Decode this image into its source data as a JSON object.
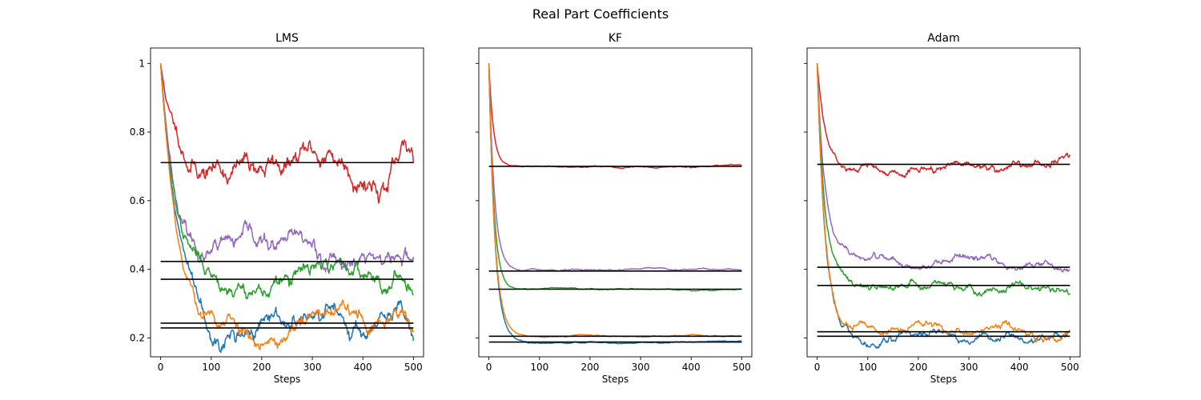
{
  "figure_title": "Real Part Coefficients",
  "colors": {
    "c1": "#1f77b4",
    "c2": "#ff7f0e",
    "c3": "#2ca02c",
    "c4": "#d62728",
    "c5": "#9467bd",
    "reference": "#000000"
  },
  "chart_data": [
    {
      "type": "line",
      "title": "LMS",
      "xlabel": "Steps",
      "ylabel": "",
      "xlim": [
        -20,
        520
      ],
      "ylim": [
        0.145,
        1.045
      ],
      "xticks": [
        0,
        100,
        200,
        300,
        400,
        500
      ],
      "yticks": [
        0.2,
        0.4,
        0.6,
        0.8,
        1.0
      ],
      "ytick_labels_visible": true,
      "grid": false,
      "references": [
        0.711,
        0.423,
        0.371,
        0.243,
        0.229
      ],
      "series": [
        {
          "color_key": "c4",
          "start": 1.0,
          "target": 0.711,
          "tau": 25,
          "noise": 0.022,
          "seed": 11
        },
        {
          "color_key": "c5",
          "start": 1.0,
          "target": 0.423,
          "tau": 30,
          "noise": 0.018,
          "seed": 23
        },
        {
          "color_key": "c3",
          "start": 1.0,
          "target": 0.371,
          "tau": 28,
          "noise": 0.017,
          "seed": 37
        },
        {
          "color_key": "c1",
          "start": 1.0,
          "target": 0.243,
          "tau": 35,
          "noise": 0.018,
          "seed": 41
        },
        {
          "color_key": "c2",
          "start": 1.0,
          "target": 0.229,
          "tau": 35,
          "noise": 0.017,
          "seed": 53
        }
      ]
    },
    {
      "type": "line",
      "title": "KF",
      "xlabel": "Steps",
      "ylabel": "",
      "xlim": [
        -20,
        520
      ],
      "ylim": [
        0.145,
        1.045
      ],
      "xticks": [
        0,
        100,
        200,
        300,
        400,
        500
      ],
      "yticks": [
        0.2,
        0.4,
        0.6,
        0.8,
        1.0
      ],
      "ytick_labels_visible": false,
      "grid": false,
      "references": [
        0.7,
        0.395,
        0.342,
        0.205,
        0.188
      ],
      "series": [
        {
          "color_key": "c4",
          "start": 1.0,
          "target": 0.7,
          "tau": 9,
          "noise": 0.0012,
          "seed": 61
        },
        {
          "color_key": "c5",
          "start": 1.0,
          "target": 0.395,
          "tau": 11,
          "noise": 0.0012,
          "seed": 67
        },
        {
          "color_key": "c3",
          "start": 1.0,
          "target": 0.342,
          "tau": 10,
          "noise": 0.0012,
          "seed": 71
        },
        {
          "color_key": "c1",
          "start": 1.0,
          "target": 0.188,
          "tau": 12,
          "noise": 0.0012,
          "seed": 79
        },
        {
          "color_key": "c2",
          "start": 1.0,
          "target": 0.205,
          "tau": 12,
          "noise": 0.0012,
          "seed": 83
        }
      ]
    },
    {
      "type": "line",
      "title": "Adam",
      "xlabel": "Steps",
      "ylabel": "",
      "xlim": [
        -20,
        520
      ],
      "ylim": [
        0.145,
        1.045
      ],
      "xticks": [
        0,
        100,
        200,
        300,
        400,
        500
      ],
      "yticks": [
        0.2,
        0.4,
        0.6,
        0.8,
        1.0
      ],
      "ytick_labels_visible": false,
      "grid": false,
      "references": [
        0.706,
        0.406,
        0.353,
        0.218,
        0.205
      ],
      "series": [
        {
          "color_key": "c4",
          "start": 1.0,
          "target": 0.706,
          "tau": 16,
          "noise": 0.008,
          "seed": 89
        },
        {
          "color_key": "c5",
          "start": 1.0,
          "target": 0.406,
          "tau": 16,
          "noise": 0.008,
          "seed": 97
        },
        {
          "color_key": "c3",
          "start": 1.0,
          "target": 0.353,
          "tau": 15,
          "noise": 0.008,
          "seed": 101
        },
        {
          "color_key": "c1",
          "start": 1.0,
          "target": 0.205,
          "tau": 16,
          "noise": 0.008,
          "seed": 103
        },
        {
          "color_key": "c2",
          "start": 1.0,
          "target": 0.218,
          "tau": 16,
          "noise": 0.008,
          "seed": 107
        }
      ]
    }
  ]
}
